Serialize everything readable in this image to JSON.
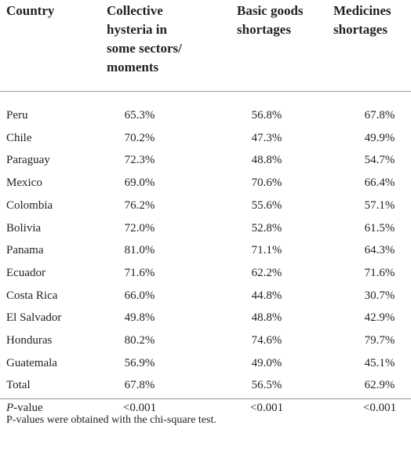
{
  "table": {
    "header": [
      "Country",
      "Collective hysteria in some sectors/ moments",
      "Basic goods shortages",
      "Medicines shortages"
    ],
    "rows": [
      [
        "Peru",
        "65.3%",
        "56.8%",
        "67.8%"
      ],
      [
        "Chile",
        "70.2%",
        "47.3%",
        "49.9%"
      ],
      [
        "Paraguay",
        "72.3%",
        "48.8%",
        "54.7%"
      ],
      [
        "Mexico",
        "69.0%",
        "70.6%",
        "66.4%"
      ],
      [
        "Colombia",
        "76.2%",
        "55.6%",
        "57.1%"
      ],
      [
        "Bolivia",
        "72.0%",
        "52.8%",
        "61.5%"
      ],
      [
        "Panama",
        "81.0%",
        "71.1%",
        "64.3%"
      ],
      [
        "Ecuador",
        "71.6%",
        "62.2%",
        "71.6%"
      ],
      [
        "Costa Rica",
        "66.0%",
        "44.8%",
        "30.7%"
      ],
      [
        "El Salvador",
        "49.8%",
        "48.8%",
        "42.9%"
      ],
      [
        "Honduras",
        "80.2%",
        "74.6%",
        "79.7%"
      ],
      [
        "Guatemala",
        "56.9%",
        "49.0%",
        "45.1%"
      ],
      [
        "Total",
        "67.8%",
        "56.5%",
        "62.9%"
      ],
      [
        "P-value",
        "<0.001",
        "<0.001",
        "<0.001"
      ]
    ],
    "footnote": "P-values were obtained with the chi-square test."
  }
}
